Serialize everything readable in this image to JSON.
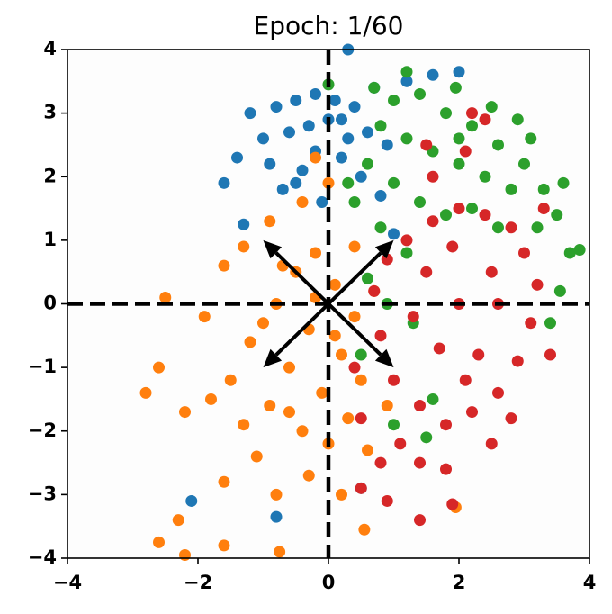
{
  "chart_data": {
    "type": "scatter",
    "title": "Epoch: 1/60",
    "xlim": [
      -4,
      4
    ],
    "ylim": [
      -4,
      4
    ],
    "xticks": [
      {
        "value": -4,
        "label": "−4"
      },
      {
        "value": -2,
        "label": "−2"
      },
      0,
      2,
      4
    ],
    "yticks": [
      {
        "value": -4,
        "label": "−4"
      },
      {
        "value": -3,
        "label": "−3"
      },
      {
        "value": -2,
        "label": "−2"
      },
      {
        "value": -1,
        "label": "−1"
      },
      0,
      1,
      2,
      3,
      4
    ],
    "hline": 0,
    "vline": 0,
    "arrows": {
      "x": [
        1,
        -1,
        -1,
        1
      ],
      "y": [
        1,
        1,
        -1,
        -1
      ],
      "color": "#000000"
    },
    "series": [
      {
        "color": "#1f77b4",
        "x": [
          -1.2,
          -0.8,
          -0.5,
          -0.2,
          0.1,
          0.4,
          0.7,
          -1.0,
          -0.6,
          -0.3,
          0.0,
          0.3,
          0.6,
          0.9,
          -1.4,
          -0.9,
          -0.4,
          0.2,
          0.5,
          -0.7,
          -0.1,
          0.8,
          1.2,
          1.6,
          2.0,
          -1.6,
          -2.1,
          -0.8,
          0.3,
          -1.3,
          -0.2,
          1.0,
          0.5,
          -0.5,
          0.2
        ],
        "values": [
          3.0,
          3.1,
          3.2,
          3.3,
          3.2,
          3.1,
          3.4,
          2.6,
          2.7,
          2.8,
          2.9,
          2.6,
          2.7,
          2.5,
          2.3,
          2.2,
          2.1,
          2.3,
          2.0,
          1.8,
          1.6,
          1.7,
          3.5,
          3.6,
          3.65,
          1.9,
          -3.1,
          -3.35,
          4.0,
          1.25,
          2.4,
          1.1,
          -2.9,
          1.9,
          2.9
        ]
      },
      {
        "color": "#ff7f0e",
        "x": [
          -0.5,
          -0.2,
          0.1,
          0.4,
          -0.8,
          -0.3,
          0.2,
          0.5,
          -0.6,
          -0.1,
          0.3,
          -0.9,
          -0.4,
          0.0,
          0.6,
          -1.2,
          -1.5,
          -1.8,
          -2.2,
          -2.6,
          -2.8,
          -2.5,
          -1.9,
          -1.6,
          -1.3,
          -0.9,
          -0.4,
          0.0,
          -0.2,
          -1.1,
          -1.6,
          -0.8,
          -0.3,
          0.2,
          -2.3,
          -2.6,
          -1.6,
          -2.2,
          -0.75,
          0.55,
          1.95,
          0.9,
          0.7,
          -0.7,
          0.4,
          -1.0,
          -0.6,
          0.1,
          -0.2,
          -1.3
        ],
        "values": [
          0.5,
          0.8,
          0.3,
          -0.2,
          0.0,
          -0.4,
          -0.8,
          -1.2,
          -1.0,
          -1.4,
          -1.8,
          -1.6,
          -2.0,
          -2.2,
          -2.3,
          -0.6,
          -1.2,
          -1.5,
          -1.7,
          -1.0,
          -1.4,
          0.1,
          -0.2,
          0.6,
          0.9,
          1.3,
          1.6,
          1.9,
          2.3,
          -2.4,
          -2.8,
          -3.0,
          -2.7,
          -3.0,
          -3.4,
          -3.75,
          -3.8,
          -3.95,
          -3.9,
          -3.55,
          -3.2,
          -1.6,
          0.2,
          0.6,
          0.9,
          -0.3,
          -1.7,
          -0.5,
          0.1,
          -1.9
        ]
      },
      {
        "color": "#2ca02c",
        "x": [
          1.0,
          1.4,
          1.8,
          2.2,
          2.6,
          3.0,
          3.3,
          3.5,
          3.7,
          0.8,
          1.2,
          1.6,
          2.0,
          2.4,
          2.8,
          3.2,
          0.6,
          1.0,
          1.4,
          1.8,
          2.2,
          2.6,
          0.4,
          0.8,
          1.2,
          0.6,
          0.9,
          0.3,
          0.7,
          1.2,
          1.95,
          2.5,
          2.9,
          3.1,
          3.6,
          3.85,
          3.55,
          1.6,
          1.0,
          1.5,
          0.5,
          1.3,
          0.0,
          3.4,
          2.0
        ],
        "values": [
          3.2,
          3.3,
          3.0,
          2.8,
          2.5,
          2.2,
          1.8,
          1.4,
          0.8,
          2.8,
          2.6,
          2.4,
          2.2,
          2.0,
          1.8,
          1.2,
          2.2,
          1.9,
          1.6,
          1.4,
          1.5,
          1.2,
          1.6,
          1.2,
          0.8,
          0.4,
          0.0,
          1.9,
          3.4,
          3.65,
          3.4,
          3.1,
          2.9,
          2.6,
          1.9,
          0.85,
          0.2,
          -1.5,
          -1.9,
          -2.1,
          -0.8,
          -0.3,
          3.45,
          -0.3,
          2.6
        ]
      },
      {
        "color": "#d62728",
        "x": [
          1.2,
          1.6,
          2.0,
          2.4,
          2.8,
          3.0,
          3.2,
          3.1,
          2.9,
          2.6,
          2.2,
          1.8,
          1.4,
          1.0,
          0.8,
          0.7,
          0.9,
          1.5,
          2.0,
          2.5,
          1.7,
          2.3,
          1.3,
          2.6,
          1.9,
          2.1,
          1.6,
          2.1,
          2.4,
          1.5,
          2.2,
          3.3,
          3.4,
          0.4,
          0.5,
          0.8,
          1.4,
          1.8,
          0.9,
          1.4,
          1.9,
          2.5,
          1.1,
          0.5,
          2.8
        ],
        "values": [
          1.0,
          1.3,
          1.5,
          1.4,
          1.2,
          0.8,
          0.3,
          -0.3,
          -0.9,
          -1.4,
          -1.7,
          -1.9,
          -1.6,
          -1.2,
          -0.5,
          0.2,
          0.7,
          0.5,
          0.0,
          0.5,
          -0.7,
          -0.8,
          -0.2,
          0.0,
          0.9,
          -1.2,
          2.0,
          2.4,
          2.9,
          2.5,
          3.0,
          1.5,
          -0.8,
          -1.0,
          -1.8,
          -2.5,
          -2.5,
          -2.6,
          -3.1,
          -3.4,
          -3.15,
          -2.2,
          -2.2,
          -2.9,
          -1.8
        ]
      }
    ]
  }
}
